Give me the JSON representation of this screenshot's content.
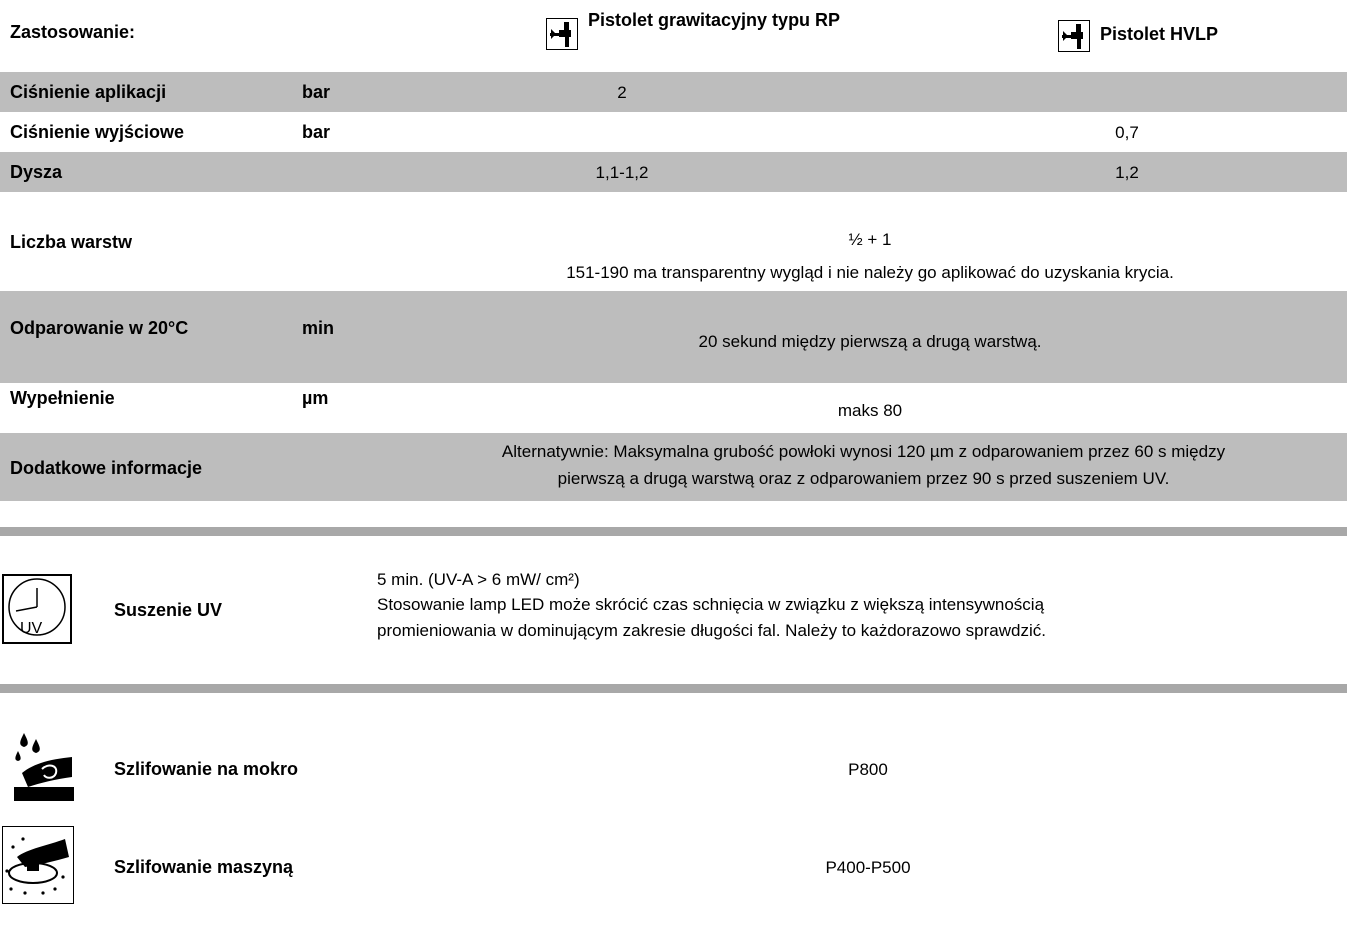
{
  "header": {
    "label": "Zastosowanie:",
    "col1": "Pistolet grawitacyjny typu RP",
    "col2": "Pistolet HVLP",
    "gun_icon": "spray-gun-icon"
  },
  "rows": {
    "pressure_app": {
      "label": "Ciśnienie aplikacji",
      "unit": "bar",
      "v1": "2",
      "v2": ""
    },
    "pressure_out": {
      "label": "Ciśnienie wyjściowe",
      "unit": "bar",
      "v1": "",
      "v2": "0,7"
    },
    "nozzle": {
      "label": "Dysza",
      "unit": "",
      "v1": "1,1-1,2",
      "v2": "1,2"
    },
    "coats": {
      "label": "Liczba warstw",
      "value": "½ + 1",
      "note": "151-190 ma transparentny wygląd i nie należy go aplikować do uzyskania krycia."
    },
    "flash": {
      "label": "Odparowanie w 20°C",
      "unit": "min",
      "value": "20 sekund między pierwszą a drugą warstwą."
    },
    "fill": {
      "label": "Wypełnienie",
      "unit": "µm",
      "value": "maks 80"
    },
    "info": {
      "label": "Dodatkowe informacje",
      "value_line1": "Alternatywnie: Maksymalna grubość powłoki wynosi 120 µm z odparowaniem przez 60 s między",
      "value_line2": "pierwszą a drugą warstwą oraz z odparowaniem przez 90 s przed suszeniem UV."
    }
  },
  "uv": {
    "label": "Suszenie UV",
    "icon": "uv-clock-icon",
    "icon_text": "UV",
    "line1": "5 min. (UV-A > 6 mW/ cm²)",
    "line2": "Stosowanie lamp LED może skrócić czas schnięcia w związku z większą intensywnością",
    "line3": "promieniowania w dominującym zakresie długości fal. Należy to każdorazowo sprawdzić."
  },
  "sanding": {
    "wet": {
      "label": "Szlifowanie na mokro",
      "value": "P800",
      "icon": "wet-sanding-icon"
    },
    "machine": {
      "label": "Szlifowanie maszyną",
      "value": "P400-P500",
      "icon": "machine-sanding-icon"
    }
  },
  "colors": {
    "band": "#bdbdbd",
    "separator": "#a8a8a8"
  }
}
